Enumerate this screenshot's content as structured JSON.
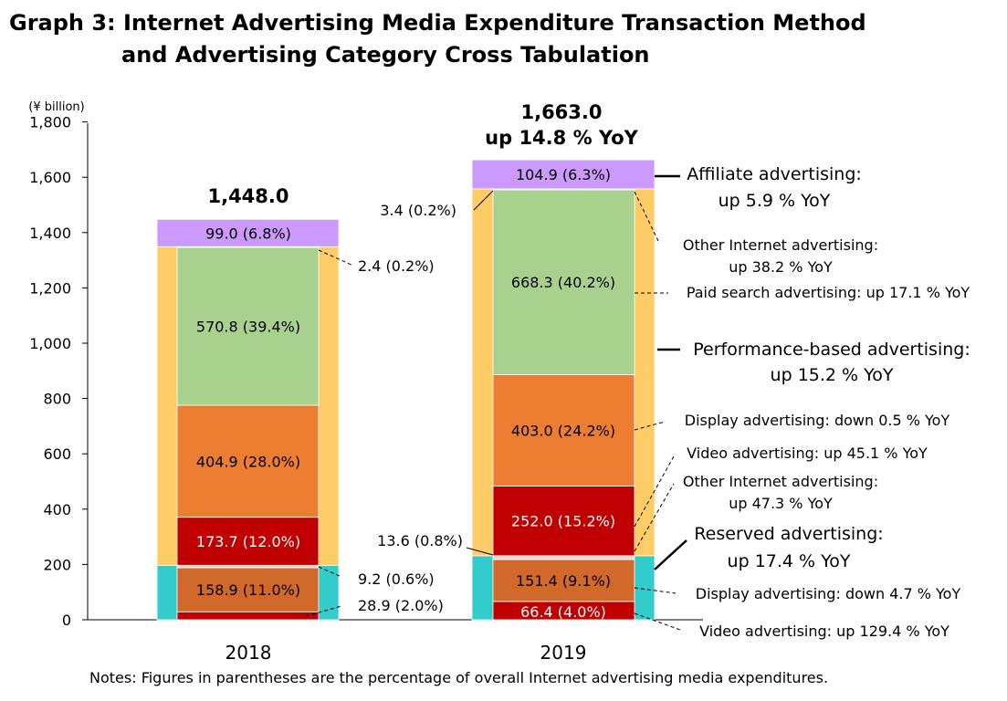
{
  "title_line1": "Graph 3: Internet Advertising Media Expenditure Transaction Method",
  "title_line2": "and Advertising Category Cross Tabulation",
  "notes": "Notes: Figures in parentheses are the percentage of overall Internet advertising media expenditures.",
  "chart_data": {
    "type": "bar",
    "stacked": true,
    "unit_label": "(¥ billion)",
    "ylim": [
      0,
      1800
    ],
    "yticks": [
      "0",
      "200",
      "400",
      "600",
      "800",
      "1,000",
      "1,200",
      "1,400",
      "1,600",
      "1,800"
    ],
    "categories": [
      "2018",
      "2019"
    ],
    "totals": [
      {
        "value": 1448.0,
        "label": "1,448.0",
        "yoy": ""
      },
      {
        "value": 1663.0,
        "label": "1,663.0",
        "yoy": "up 14.8 % YoY"
      }
    ],
    "colors": {
      "reserved": "#33cccc",
      "performance": "#ffcc66",
      "affiliate": "#cc99ff",
      "paid_search": "#a9d18e",
      "display_perf": "#ed7d31",
      "video_perf": "#c00000",
      "display_res": "#d0692a",
      "video_res": "#c00000",
      "other": "#d9d9d9"
    },
    "series": [
      {
        "name": "Video advertising",
        "group": "Reserved advertising",
        "values": [
          28.9,
          66.4
        ],
        "labels": [
          "28.9 (2.0%)",
          "66.4 (4.0%)"
        ],
        "yoy": "up 129.4 % YoY"
      },
      {
        "name": "Display advertising",
        "group": "Reserved advertising",
        "values": [
          158.9,
          151.4
        ],
        "labels": [
          "158.9 (11.0%)",
          "151.4 (9.1%)"
        ],
        "yoy": "down 4.7 % YoY"
      },
      {
        "name": "Other Internet advertising",
        "group": "Reserved advertising",
        "values": [
          9.2,
          13.6
        ],
        "labels": [
          "9.2 (0.6%)",
          "13.6 (0.8%)"
        ],
        "yoy": ""
      },
      {
        "name": "Video advertising",
        "group": "Performance-based advertising",
        "values": [
          173.7,
          252.0
        ],
        "labels": [
          "173.7 (12.0%)",
          "252.0 (15.2%)"
        ],
        "yoy": "up 45.1 % YoY"
      },
      {
        "name": "Display advertising",
        "group": "Performance-based advertising",
        "values": [
          404.9,
          403.0
        ],
        "labels": [
          "404.9 (28.0%)",
          "403.0 (24.2%)"
        ],
        "yoy": "down 0.5 % YoY"
      },
      {
        "name": "Paid search advertising",
        "group": "Performance-based advertising",
        "values": [
          570.8,
          668.3
        ],
        "labels": [
          "570.8 (39.4%)",
          "668.3 (40.2%)"
        ],
        "yoy": "up 17.1 % YoY"
      },
      {
        "name": "Other Internet advertising",
        "group": "Performance-based advertising",
        "values": [
          2.4,
          3.4
        ],
        "labels": [
          "2.4 (0.2%)",
          "3.4 (0.2%)"
        ],
        "yoy": "up 38.2 % YoY"
      },
      {
        "name": "Affiliate advertising",
        "group": "",
        "values": [
          99.0,
          104.9
        ],
        "labels": [
          "99.0 (6.8%)",
          "104.9 (6.3%)"
        ],
        "yoy": "up 5.9 % YoY"
      }
    ],
    "annotations": [
      "Affiliate advertising:",
      "up 5.9 % YoY",
      "Other Internet advertising:",
      "up 38.2 % YoY",
      "Paid search advertising: up 17.1 % YoY",
      "Performance-based advertising:",
      "up 15.2 % YoY",
      "Display advertising: down 0.5 % YoY",
      "Video advertising: up 45.1 % YoY",
      "Other Internet advertising:",
      "up 47.3 % YoY",
      "Reserved advertising:",
      "up 17.4 % YoY",
      "Display advertising: down 4.7 % YoY",
      "Video advertising: up 129.4 % YoY"
    ]
  }
}
